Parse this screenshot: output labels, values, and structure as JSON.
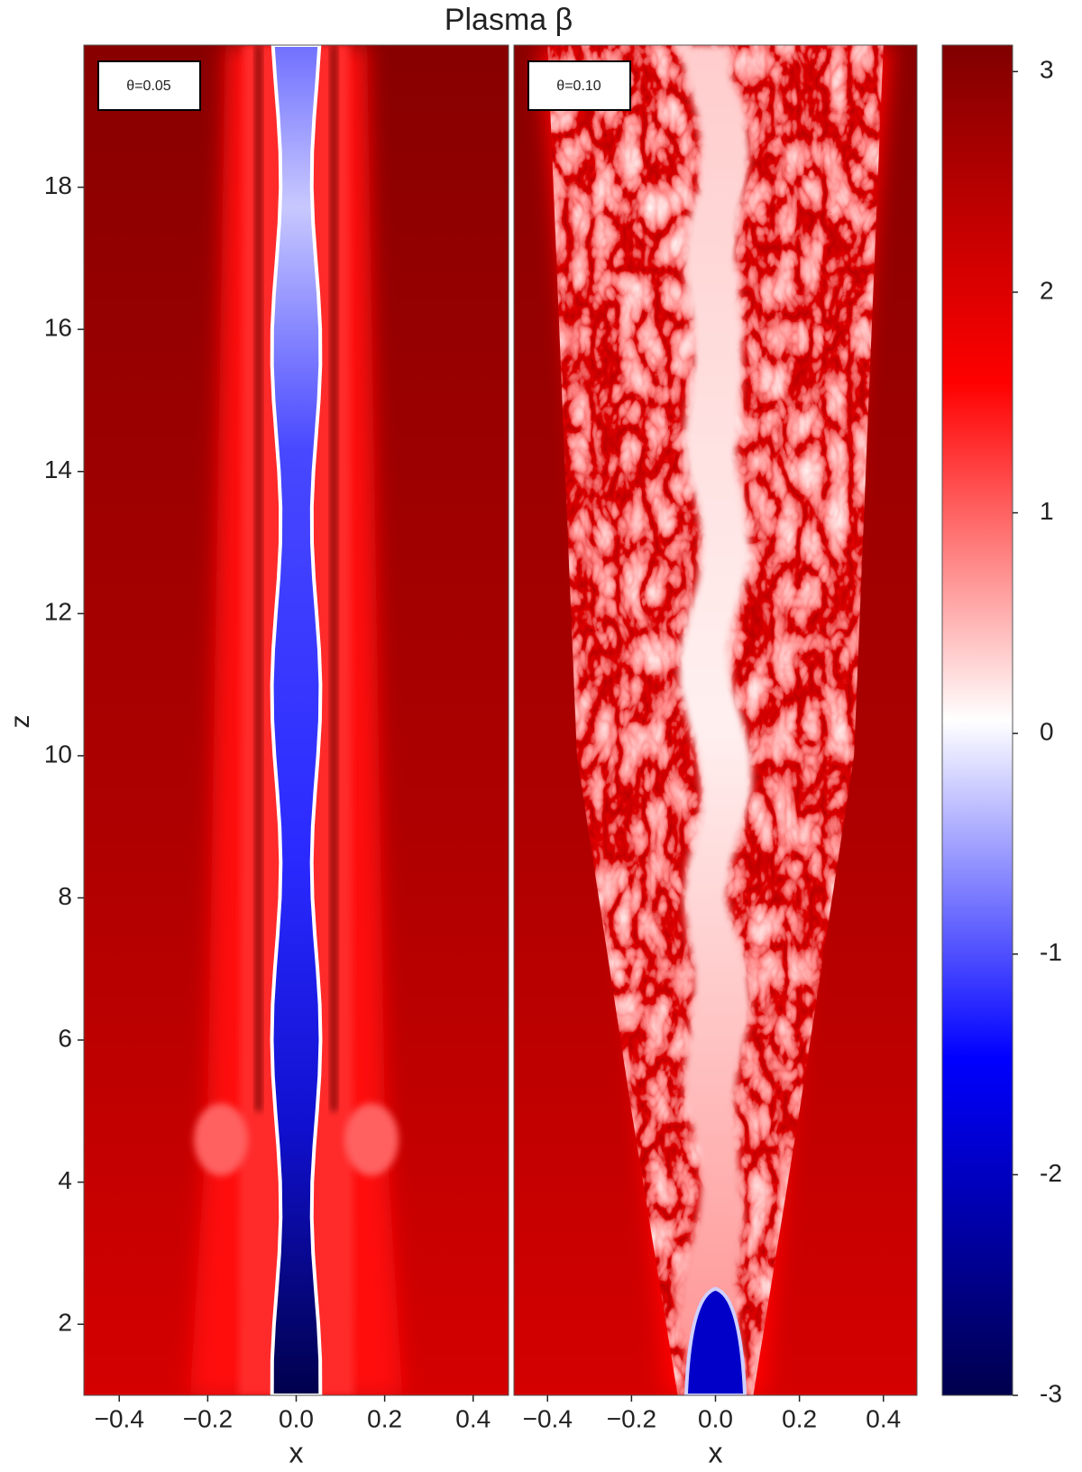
{
  "chart_data": {
    "type": "heatmap",
    "title": "Plasma β",
    "panels": [
      {
        "label": "θ=0.05",
        "xlabel": "x"
      },
      {
        "label": "θ=0.10",
        "xlabel": "x"
      }
    ],
    "ylabel": "z",
    "xlim": [
      -0.48,
      0.48
    ],
    "xticks": [
      {
        "value": -0.4,
        "label": "−0.4"
      },
      {
        "value": -0.2,
        "label": "−0.2"
      },
      {
        "value": 0,
        "label": "0.0"
      },
      0.2,
      0.4
    ],
    "ylim": [
      1,
      20
    ],
    "yticks": [
      2,
      4,
      6,
      8,
      10,
      12,
      14,
      16,
      18
    ],
    "colorbar": {
      "lim": [
        -3,
        3.12
      ],
      "ticks": [
        3,
        2,
        1,
        0,
        -1,
        -2,
        -3
      ],
      "colors": [
        "#00004c",
        "#0000ff",
        "#ffffff",
        "#ff0000",
        "#800000"
      ]
    }
  }
}
